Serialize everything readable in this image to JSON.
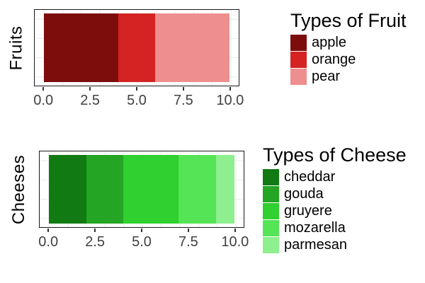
{
  "figure": {
    "background_color": "#FFFFFF",
    "grid_color": "#EBEBEB",
    "panel_border_color": "#1A1A1A",
    "axis_text_color": "#404040",
    "text_color": "#000000"
  },
  "chart_data": [
    {
      "type": "bar",
      "orientation": "horizontal_stacked",
      "ylabel": "Fruits",
      "legend_title": "Types of Fruit",
      "legend_position": "right",
      "categories": [
        "Fruits"
      ],
      "xlim": [
        0,
        10
      ],
      "x_ticks": [
        0,
        2.5,
        5,
        7.5,
        10
      ],
      "x_tick_labels": [
        "0.0",
        "2.5",
        "5.0",
        "7.5",
        "10.0"
      ],
      "grid": true,
      "series": [
        {
          "name": "apple",
          "value": 4,
          "color": "#7D0D0D"
        },
        {
          "name": "orange",
          "value": 2,
          "color": "#D42322"
        },
        {
          "name": "pear",
          "value": 4,
          "color": "#EE8E8E"
        }
      ]
    },
    {
      "type": "bar",
      "orientation": "horizontal_stacked",
      "ylabel": "Cheeses",
      "legend_title": "Types of Cheese",
      "legend_position": "right",
      "categories": [
        "Cheeses"
      ],
      "xlim": [
        0,
        10
      ],
      "x_ticks": [
        0,
        2.5,
        5,
        7.5,
        10
      ],
      "x_tick_labels": [
        "0.0",
        "2.5",
        "5.0",
        "7.5",
        "10.0"
      ],
      "grid": true,
      "series": [
        {
          "name": "cheddar",
          "value": 2,
          "color": "#127A12"
        },
        {
          "name": "gouda",
          "value": 2,
          "color": "#24A524"
        },
        {
          "name": "gruyere",
          "value": 3,
          "color": "#2FD02F"
        },
        {
          "name": "mozarella",
          "value": 2,
          "color": "#55E455"
        },
        {
          "name": "parmesan",
          "value": 1,
          "color": "#8DEF8D"
        }
      ]
    }
  ]
}
